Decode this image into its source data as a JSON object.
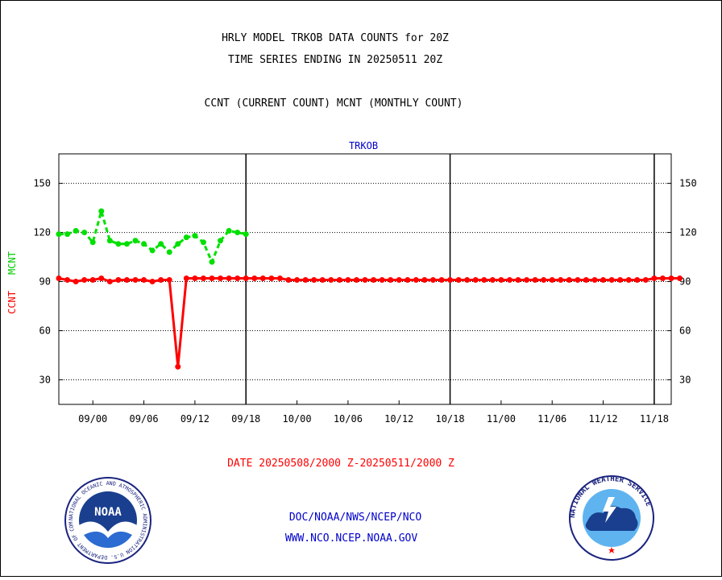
{
  "header": {
    "title_line1": "HRLY MODEL TRKOB DATA COUNTS for 20Z",
    "title_line2": "TIME SERIES ENDING IN 20250511 20Z",
    "subtitle": "CCNT (CURRENT COUNT) MCNT (MONTHLY COUNT)"
  },
  "footer": {
    "date_range": "DATE 20250508/2000 Z-20250511/2000 Z",
    "org_path": "DOC/NOAA/NWS/NCEP/NCO",
    "website": "WWW.NCO.NCEP.NOAA.GOV"
  },
  "logos": {
    "noaa_text": "NOAA",
    "noaa_ring_text": "NATIONAL OCEANIC AND ATMOSPHERIC ADMINISTRATION  U.S. DEPARTMENT OF COMMERCE",
    "nws_ring_text": "NATIONAL WEATHER SERVICE"
  },
  "colors": {
    "ccnt": "#ff0000",
    "mcnt": "#00e000",
    "panel_label": "#0000cc",
    "footer_text": "#0000cc",
    "date_text": "#ff0000"
  },
  "chart_data": {
    "type": "line",
    "panel_label": "TRKOB",
    "ylabel_left": "CCNT",
    "ylabel_right": "MCNT",
    "ylim": [
      15,
      168
    ],
    "y_ticks": [
      30,
      60,
      90,
      120,
      150
    ],
    "grid": true,
    "x_tick_labels": [
      "09/00",
      "09/06",
      "09/12",
      "09/18",
      "10/00",
      "10/06",
      "10/12",
      "10/18",
      "11/00",
      "11/06",
      "11/12",
      "11/18"
    ],
    "x_tick_hours": [
      4,
      10,
      16,
      22,
      28,
      34,
      40,
      46,
      52,
      58,
      64,
      70
    ],
    "xlim_hours": [
      0,
      72
    ],
    "day_boundaries_hours": [
      22,
      46,
      70
    ],
    "series": [
      {
        "name": "CCNT",
        "style": "solid",
        "values": [
          92,
          91,
          90,
          91,
          91,
          92,
          90,
          91,
          91,
          91,
          91,
          90,
          91,
          91,
          38,
          92,
          92,
          92,
          92,
          92,
          92,
          92,
          92,
          92,
          92,
          92,
          92,
          91,
          91,
          91,
          91,
          91,
          91,
          91,
          91,
          91,
          91,
          91,
          91,
          91,
          91,
          91,
          91,
          91,
          91,
          91,
          91,
          91,
          91,
          91,
          91,
          91,
          91,
          91,
          91,
          91,
          91,
          91,
          91,
          91,
          91,
          91,
          91,
          91,
          91,
          91,
          91,
          91,
          91,
          91,
          92,
          92,
          92,
          92
        ]
      },
      {
        "name": "MCNT",
        "style": "dotted",
        "values": [
          119,
          119,
          121,
          120,
          114,
          133,
          115,
          113,
          113,
          115,
          113,
          109,
          113,
          108,
          113,
          117,
          118,
          114,
          102,
          115,
          121,
          120,
          119
        ]
      }
    ]
  }
}
